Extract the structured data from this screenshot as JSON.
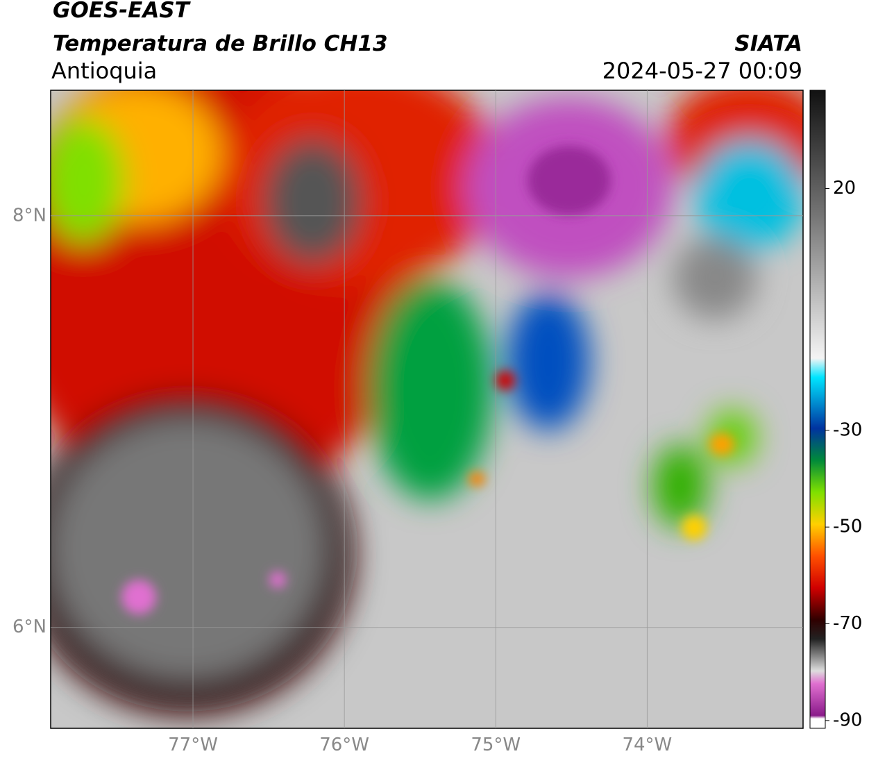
{
  "header": {
    "title": "GOES-EAST",
    "subtitle": "Temperatura de Brillo CH13",
    "region": "Antioquia",
    "source": "SIATA",
    "timestamp": "2024-05-27 00:09"
  },
  "map": {
    "lat_lim": [
      5.51,
      8.61
    ],
    "lon_lim": [
      -77.94,
      -72.97
    ],
    "lat_ticks": [
      {
        "value": 8,
        "label": "8°N"
      },
      {
        "value": 6,
        "label": "6°N"
      }
    ],
    "lon_ticks": [
      {
        "value": -77,
        "label": "77°W"
      },
      {
        "value": -76,
        "label": "76°W"
      },
      {
        "value": -75,
        "label": "75°W"
      },
      {
        "value": -74,
        "label": "74°W"
      }
    ]
  },
  "colorbar": {
    "lim": [
      -91.6,
      40.3
    ],
    "ticks": [
      20,
      -30,
      -50,
      -70,
      -90
    ]
  }
}
